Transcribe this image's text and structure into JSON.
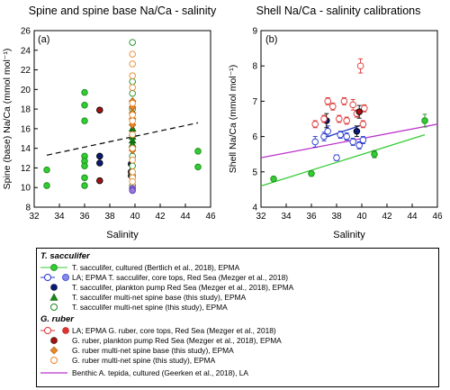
{
  "panel_titles": {
    "left": "Spine and spine base Na/Ca - salinity",
    "right": "Shell Na/Ca - salinity calibrations"
  },
  "colors": {
    "green": "#33cc33",
    "dark_green": "#1a8a1a",
    "blue": "#2233cc",
    "navy": "#0a1a7a",
    "red": "#dd3333",
    "dark_red": "#aa1111",
    "orange": "#e8882a",
    "purple": "#bb33cc"
  },
  "chart_data": [
    {
      "type": "scatter",
      "panel_label": "(a)",
      "xlabel": "Salinity",
      "ylabel": "Spine (base) Na/Ca (mmol mol⁻¹)",
      "xlim": [
        32,
        46
      ],
      "ylim": [
        8,
        26
      ],
      "xticks": [
        32,
        34,
        36,
        38,
        40,
        42,
        44,
        46
      ],
      "yticks": [
        8,
        10,
        12,
        14,
        16,
        18,
        20,
        22,
        24,
        26
      ],
      "grid": false,
      "series": [
        {
          "key": "ts_cultured",
          "points": [
            [
              33,
              10.2
            ],
            [
              33,
              11.8
            ],
            [
              36,
              19.7
            ],
            [
              36,
              18.4
            ],
            [
              36,
              16.8
            ],
            [
              36,
              13.2
            ],
            [
              36,
              12.7
            ],
            [
              36,
              12.2
            ],
            [
              36,
              11.0
            ],
            [
              36,
              10.2
            ],
            [
              45,
              13.7
            ],
            [
              45,
              12.1
            ]
          ]
        },
        {
          "key": "ts_pump",
          "points": [
            [
              37.2,
              13.2
            ],
            [
              37.2,
              12.5
            ],
            [
              39.7,
              12.4
            ],
            [
              39.7,
              11.6
            ],
            [
              39.7,
              11.2
            ]
          ]
        },
        {
          "key": "ts_spine_base",
          "points": [
            [
              39.8,
              16.0
            ],
            [
              39.8,
              15.6
            ],
            [
              39.8,
              15.2
            ],
            [
              39.8,
              14.8
            ],
            [
              39.8,
              14.4
            ]
          ]
        },
        {
          "key": "ts_spine",
          "points": [
            [
              39.8,
              24.8
            ],
            [
              39.8,
              20.8
            ],
            [
              39.8,
              19.6
            ],
            [
              39.8,
              18.0
            ],
            [
              39.8,
              13.2
            ],
            [
              39.8,
              12.2
            ],
            [
              39.8,
              11.2
            ],
            [
              39.8,
              10.2
            ]
          ]
        },
        {
          "key": "gr_pump",
          "points": [
            [
              37.2,
              17.9
            ],
            [
              37.2,
              10.7
            ]
          ]
        },
        {
          "key": "gr_spine_base",
          "points": [
            [
              39.8,
              18.8
            ],
            [
              39.8,
              18.2
            ],
            [
              39.8,
              17.6
            ],
            [
              39.8,
              17.0
            ],
            [
              39.8,
              16.4
            ],
            [
              39.8,
              13.8
            ]
          ]
        },
        {
          "key": "gr_spine",
          "points": [
            [
              39.8,
              23.6
            ],
            [
              39.8,
              22.6
            ],
            [
              39.8,
              21.4
            ],
            [
              39.8,
              20.2
            ],
            [
              39.8,
              18.6
            ],
            [
              39.8,
              17.4
            ],
            [
              39.8,
              16.8
            ],
            [
              39.8,
              15.4
            ],
            [
              39.8,
              14.0
            ],
            [
              39.8,
              12.8
            ],
            [
              39.8,
              11.6
            ],
            [
              39.8,
              11.0
            ],
            [
              39.8,
              10.6
            ]
          ]
        },
        {
          "key": "purple_pts",
          "points": [
            [
              39.8,
              9.9
            ],
            [
              39.8,
              9.7
            ]
          ]
        }
      ],
      "lines": [
        {
          "key": "spine_fit",
          "style": "dashed",
          "points": [
            [
              33,
              13.3
            ],
            [
              45,
              16.6
            ]
          ]
        }
      ]
    },
    {
      "type": "scatter",
      "panel_label": "(b)",
      "xlabel": "Salinity",
      "ylabel": "Shell Na/Ca (mmol mol⁻¹)",
      "xlim": [
        32,
        46
      ],
      "ylim": [
        4,
        9
      ],
      "xticks": [
        32,
        34,
        36,
        38,
        40,
        42,
        44,
        46
      ],
      "yticks": [
        4,
        5,
        6,
        7,
        8,
        9
      ],
      "grid": false,
      "series": [
        {
          "key": "ts_cultured",
          "points": [
            [
              33,
              4.8,
              0.05
            ],
            [
              36,
              4.95,
              0.07
            ],
            [
              41,
              5.5,
              0.1
            ],
            [
              45,
              6.45,
              0.18
            ]
          ]
        },
        {
          "key": "ts_coretops",
          "points": [
            [
              36.3,
              5.85,
              0.15
            ],
            [
              37,
              6.0,
              0.12
            ],
            [
              38,
              5.4,
              0.08
            ],
            [
              38.3,
              6.05,
              0.1
            ],
            [
              38.8,
              6.0,
              0.1
            ],
            [
              39.3,
              5.85,
              0.1
            ],
            [
              39.8,
              5.75,
              0.1
            ],
            [
              40.1,
              5.9,
              0.1
            ],
            [
              37.3,
              6.15,
              0.15
            ]
          ]
        },
        {
          "key": "ts_pump",
          "points": [
            [
              37.2,
              6.45,
              0.2
            ],
            [
              39.6,
              6.15,
              0.15
            ]
          ]
        },
        {
          "key": "gr_coretops",
          "points": [
            [
              36.3,
              6.35,
              0.1
            ],
            [
              37,
              6.5,
              0.1
            ],
            [
              37.3,
              7.0,
              0.1
            ],
            [
              37.7,
              6.85,
              0.1
            ],
            [
              38.2,
              6.5,
              0.1
            ],
            [
              38.6,
              7.0,
              0.1
            ],
            [
              38.8,
              6.45,
              0.1
            ],
            [
              39.3,
              6.9,
              0.15
            ],
            [
              39.6,
              6.65,
              0.1
            ],
            [
              40.1,
              6.35,
              0.1
            ],
            [
              40.2,
              6.8,
              0.1
            ],
            [
              39.9,
              8.0,
              0.2
            ]
          ]
        },
        {
          "key": "gr_pump",
          "points": [
            [
              39.8,
              6.7,
              0.18
            ]
          ]
        }
      ],
      "lines": [
        {
          "key": "ts_fit",
          "style": "solid",
          "color": "#33cc33",
          "points": [
            [
              32,
              4.6
            ],
            [
              45,
              6.05
            ]
          ]
        },
        {
          "key": "ts_coretop_fit",
          "style": "solid",
          "color": "#2233cc",
          "points": [
            [
              37.3,
              6.0
            ],
            [
              40.2,
              6.35
            ]
          ]
        },
        {
          "key": "tepida_fit",
          "style": "solid",
          "color": "#bb33cc",
          "points": [
            [
              32,
              5.4
            ],
            [
              46,
              6.35
            ]
          ]
        }
      ]
    }
  ],
  "legend": {
    "group1_title": "T. sacculifer",
    "group2_title": "G. ruber",
    "rows": [
      {
        "key": "ts_cultured",
        "text": "T. sacculifer, cultured (Bertlich et al., 2018), EPMA"
      },
      {
        "key": "ts_la_epma",
        "text": "LA;  EPMA T. sacculifer, core tops, Red Sea (Mezger et al., 2018)"
      },
      {
        "key": "ts_pump",
        "text": "T. sacculifer, plankton pump Red Sea (Mezger et al., 2018), EPMA"
      },
      {
        "key": "ts_spine_base",
        "text": "T. sacculifer multi-net spine base (this study), EPMA"
      },
      {
        "key": "ts_spine",
        "text": "T. sacculifer multi-net spine (this study), EPMA"
      },
      {
        "key": "gr_la_epma",
        "text": "LA;  EPMA G. ruber, core tops, Red Sea (Mezger et al., 2018)"
      },
      {
        "key": "gr_pump",
        "text": "G. ruber, plankton pump Red Sea (Mezger et al., 2018), EPMA"
      },
      {
        "key": "gr_spine_base",
        "text": "G. ruber multi-net spine base (this study), EPMA"
      },
      {
        "key": "gr_spine",
        "text": "G. ruber multi-net spine (this study), EPMA"
      },
      {
        "key": "tepida",
        "text": "Benthic A. tepida, cultured (Geerken et al., 2018), LA"
      }
    ]
  }
}
